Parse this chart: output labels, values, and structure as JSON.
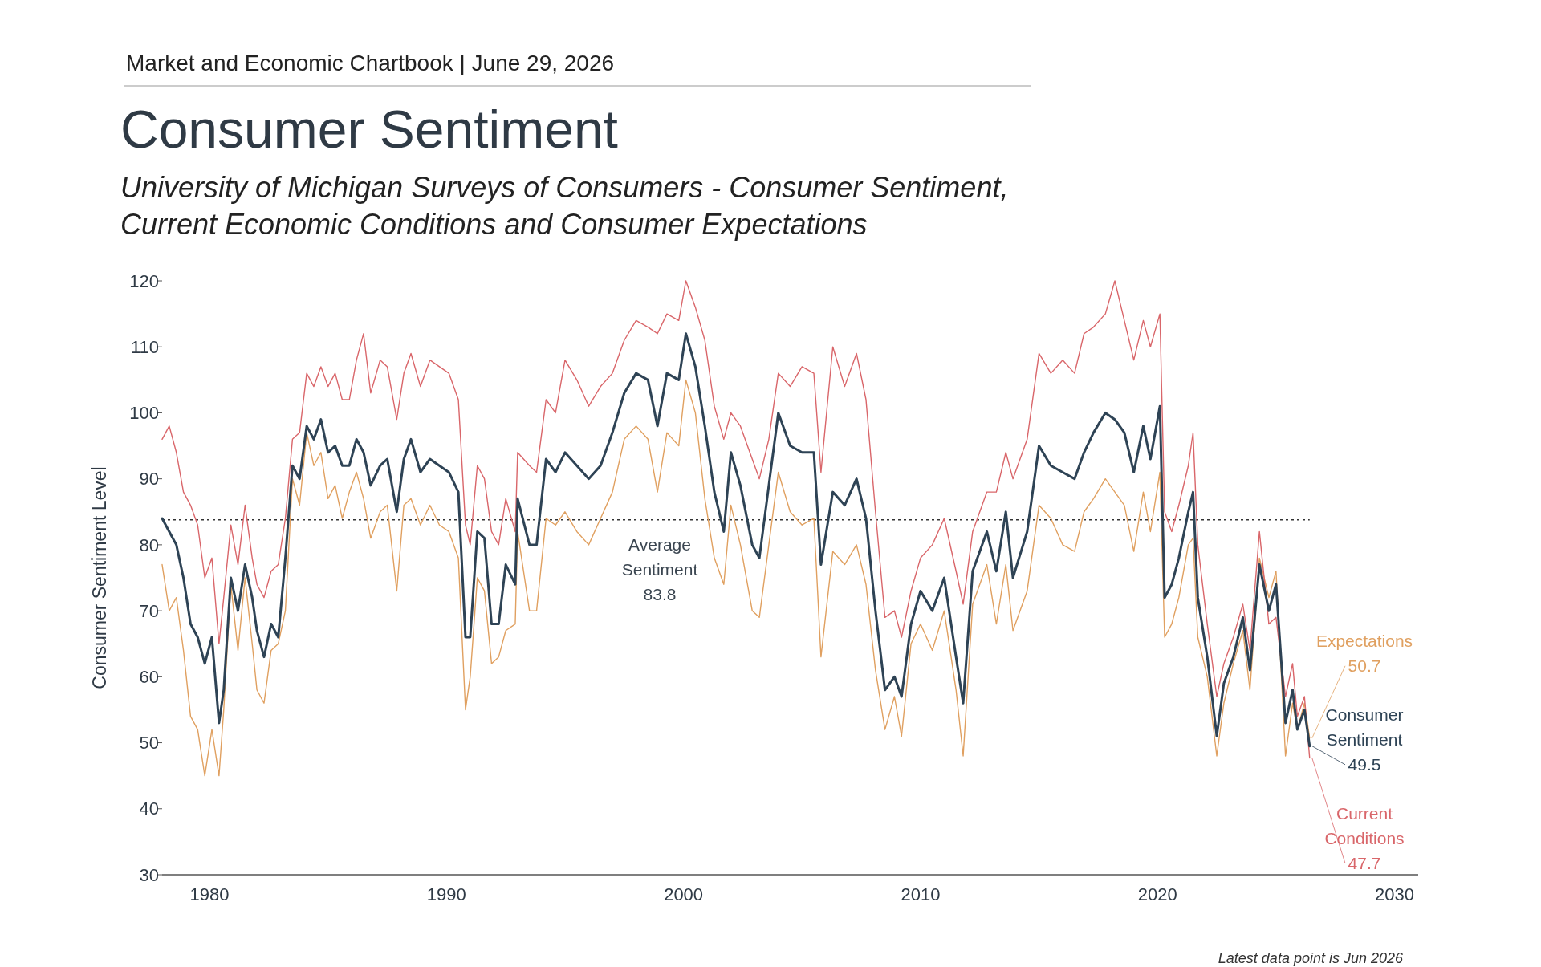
{
  "chart_data": {
    "type": "line",
    "title": "Consumer Sentiment",
    "subtitle": "University of Michigan Surveys of Consumers - Consumer Sentiment,\nCurrent Economic Conditions and Consumer Expectations",
    "ylabel": "Consumer Sentiment Level",
    "annotations": [
      "Market and Economic Chartbook | June 29, 2026",
      "Latest data point is Jun 2026"
    ],
    "x": [
      1978.0,
      1978.3,
      1978.6,
      1978.9,
      1979.2,
      1979.5,
      1979.8,
      1980.1,
      1980.4,
      1980.6,
      1980.9,
      1981.2,
      1981.5,
      1981.8,
      1982.0,
      1982.3,
      1982.6,
      1982.9,
      1983.2,
      1983.5,
      1983.8,
      1984.1,
      1984.4,
      1984.7,
      1985.0,
      1985.3,
      1985.6,
      1985.9,
      1986.2,
      1986.5,
      1986.8,
      1987.2,
      1987.5,
      1987.9,
      1988.2,
      1988.5,
      1988.9,
      1989.3,
      1989.7,
      1990.1,
      1990.5,
      1990.8,
      1991.0,
      1991.3,
      1991.6,
      1991.9,
      1992.2,
      1992.5,
      1992.9,
      1993.0,
      1993.5,
      1993.8,
      1994.2,
      1994.6,
      1995.0,
      1995.5,
      1996.0,
      1996.5,
      1997.0,
      1997.5,
      1998.0,
      1998.5,
      1998.9,
      1999.3,
      1999.8,
      2000.1,
      2000.5,
      2000.9,
      2001.3,
      2001.7,
      2002.0,
      2002.4,
      2002.9,
      2003.2,
      2003.6,
      2004.0,
      2004.5,
      2005.0,
      2005.5,
      2005.8,
      2006.3,
      2006.8,
      2007.3,
      2007.7,
      2008.1,
      2008.5,
      2008.9,
      2009.2,
      2009.6,
      2010.0,
      2010.5,
      2011.0,
      2011.5,
      2011.8,
      2012.2,
      2012.8,
      2013.2,
      2013.6,
      2013.9,
      2014.5,
      2015.0,
      2015.5,
      2016.0,
      2016.5,
      2016.9,
      2017.3,
      2017.8,
      2018.2,
      2018.6,
      2019.0,
      2019.4,
      2019.7,
      2020.1,
      2020.3,
      2020.6,
      2020.9,
      2021.3,
      2021.5,
      2021.7,
      2022.1,
      2022.5,
      2022.8,
      2023.2,
      2023.6,
      2023.9,
      2024.3,
      2024.7,
      2025.0,
      2025.4,
      2025.7,
      2025.9,
      2026.2,
      2026.42
    ],
    "series": [
      {
        "name": "Expectations",
        "color": "#e0a060",
        "values": [
          77,
          70,
          72,
          64,
          54,
          52,
          45,
          52,
          45,
          55,
          74,
          64,
          75,
          65,
          58,
          56,
          64,
          65,
          70,
          90,
          86,
          97,
          92,
          94,
          87,
          89,
          84,
          88,
          91,
          87,
          81,
          85,
          86,
          73,
          86,
          87,
          83,
          86,
          83,
          82,
          78,
          55,
          60,
          75,
          73,
          62,
          63,
          67,
          68,
          82,
          70,
          70,
          84,
          83,
          85,
          82,
          80,
          84,
          88,
          96,
          98,
          96,
          88,
          97,
          95,
          105,
          100,
          87,
          78,
          74,
          86,
          80,
          70,
          69,
          80,
          91,
          85,
          83,
          84,
          63,
          79,
          77,
          80,
          74,
          61,
          52,
          57,
          51,
          65,
          68,
          64,
          70,
          58,
          48,
          71,
          77,
          68,
          77,
          67,
          73,
          86,
          84,
          80,
          79,
          85,
          87,
          90,
          88,
          86,
          79,
          88,
          82,
          91,
          66,
          68,
          72,
          80,
          81,
          66,
          60,
          48,
          56,
          62,
          67,
          58,
          78,
          72,
          76,
          48,
          56,
          52,
          56,
          50.7
        ],
        "value_labels": [
          null,
          null,
          null,
          null,
          null,
          null,
          null,
          null,
          null,
          null,
          null,
          null,
          null,
          null,
          null,
          null,
          null,
          null,
          null,
          null,
          null,
          null,
          null,
          null,
          null,
          null,
          null,
          null,
          null,
          null,
          null,
          null,
          null,
          null,
          null,
          null,
          null,
          null,
          null,
          null,
          null,
          null,
          null,
          null,
          null,
          null,
          null,
          null,
          null,
          null,
          null,
          null,
          null,
          null,
          null,
          null,
          null,
          null,
          null,
          null,
          null,
          null,
          null,
          null,
          null,
          null,
          null,
          null,
          null,
          null,
          null,
          null,
          null,
          null,
          null,
          null,
          null,
          null,
          null,
          null,
          null,
          null,
          null,
          null,
          null,
          null,
          null,
          null,
          null,
          null,
          null,
          null,
          null,
          null,
          null,
          null,
          null,
          null,
          null,
          null,
          null,
          null,
          null,
          null,
          null,
          null,
          null,
          null,
          null,
          null,
          null,
          null,
          null,
          null,
          null,
          null,
          null,
          null,
          null,
          null,
          null,
          null,
          null,
          null,
          null,
          null,
          null,
          null,
          null,
          null,
          null,
          null,
          "50.7"
        ]
      },
      {
        "name": "Consumer Sentiment",
        "color": "#2e4355",
        "values": [
          84,
          82,
          80,
          75,
          68,
          66,
          62,
          66,
          53,
          58,
          75,
          70,
          77,
          72,
          67,
          63,
          68,
          66,
          78,
          92,
          90,
          98,
          96,
          99,
          94,
          95,
          92,
          92,
          96,
          94,
          89,
          92,
          93,
          85,
          93,
          96,
          91,
          93,
          92,
          91,
          88,
          66,
          66,
          82,
          81,
          68,
          68,
          77,
          74,
          87,
          80,
          80,
          93,
          91,
          94,
          92,
          90,
          92,
          97,
          103,
          106,
          105,
          98,
          106,
          105,
          112,
          107,
          98,
          88,
          82,
          94,
          89,
          80,
          78,
          89,
          100,
          95,
          94,
          94,
          77,
          88,
          86,
          90,
          84,
          70,
          58,
          60,
          57,
          68,
          73,
          70,
          75,
          63,
          56,
          76,
          82,
          76,
          85,
          75,
          82,
          95,
          92,
          91,
          90,
          94,
          97,
          100,
          99,
          97,
          91,
          98,
          93,
          101,
          72,
          74,
          78,
          85,
          88,
          72,
          63,
          51,
          59,
          63,
          69,
          61,
          77,
          70,
          74,
          53,
          58,
          52,
          55,
          49.5
        ],
        "value_labels": [
          null,
          null,
          null,
          null,
          null,
          null,
          null,
          null,
          null,
          null,
          null,
          null,
          null,
          null,
          null,
          null,
          null,
          null,
          null,
          null,
          null,
          null,
          null,
          null,
          null,
          null,
          null,
          null,
          null,
          null,
          null,
          null,
          null,
          null,
          null,
          null,
          null,
          null,
          null,
          null,
          null,
          null,
          null,
          null,
          null,
          null,
          null,
          null,
          null,
          null,
          null,
          null,
          null,
          null,
          null,
          null,
          null,
          null,
          null,
          null,
          null,
          null,
          null,
          null,
          null,
          null,
          null,
          null,
          null,
          null,
          null,
          null,
          null,
          null,
          null,
          null,
          null,
          null,
          null,
          null,
          null,
          null,
          null,
          null,
          null,
          null,
          null,
          null,
          null,
          null,
          null,
          null,
          null,
          null,
          null,
          null,
          null,
          null,
          null,
          null,
          null,
          null,
          null,
          null,
          null,
          null,
          null,
          null,
          null,
          null,
          null,
          null,
          null,
          null,
          null,
          null,
          null,
          null,
          null,
          null,
          null,
          null,
          null,
          null,
          null,
          null,
          null,
          null,
          null,
          null,
          null,
          null,
          "49.5"
        ]
      },
      {
        "name": "Current Conditions",
        "color": "#d9666a",
        "values": [
          96,
          98,
          94,
          88,
          86,
          83,
          75,
          78,
          65,
          72,
          83,
          77,
          86,
          78,
          74,
          72,
          76,
          77,
          84,
          96,
          97,
          106,
          104,
          107,
          104,
          106,
          102,
          102,
          108,
          112,
          103,
          108,
          107,
          99,
          106,
          109,
          104,
          108,
          107,
          106,
          102,
          83,
          80,
          92,
          90,
          82,
          80,
          87,
          82,
          94,
          92,
          91,
          102,
          100,
          108,
          105,
          101,
          104,
          106,
          111,
          114,
          113,
          112,
          115,
          114,
          120,
          116,
          111,
          101,
          96,
          100,
          98,
          93,
          90,
          96,
          106,
          104,
          107,
          106,
          91,
          110,
          104,
          109,
          102,
          85,
          69,
          70,
          66,
          73,
          78,
          80,
          84,
          76,
          71,
          82,
          88,
          88,
          94,
          90,
          96,
          109,
          106,
          108,
          106,
          112,
          113,
          115,
          120,
          114,
          108,
          114,
          110,
          115,
          85,
          82,
          86,
          92,
          97,
          80,
          68,
          57,
          62,
          66,
          71,
          64,
          82,
          68,
          69,
          57,
          62,
          54,
          57,
          47.7
        ],
        "value_labels": [
          null,
          null,
          null,
          null,
          null,
          null,
          null,
          null,
          null,
          null,
          null,
          null,
          null,
          null,
          null,
          null,
          null,
          null,
          null,
          null,
          null,
          null,
          null,
          null,
          null,
          null,
          null,
          null,
          null,
          null,
          null,
          null,
          null,
          null,
          null,
          null,
          null,
          null,
          null,
          null,
          null,
          null,
          null,
          null,
          null,
          null,
          null,
          null,
          null,
          null,
          null,
          null,
          null,
          null,
          null,
          null,
          null,
          null,
          null,
          null,
          null,
          null,
          null,
          null,
          null,
          null,
          null,
          null,
          null,
          null,
          null,
          null,
          null,
          null,
          null,
          null,
          null,
          null,
          null,
          null,
          null,
          null,
          null,
          null,
          null,
          null,
          null,
          null,
          null,
          null,
          null,
          null,
          null,
          null,
          null,
          null,
          null,
          null,
          null,
          null,
          null,
          null,
          null,
          null,
          null,
          null,
          null,
          null,
          null,
          null,
          null,
          null,
          null,
          null,
          null,
          null,
          null,
          null,
          null,
          null,
          null,
          null,
          null,
          null,
          null,
          null,
          null,
          null,
          null,
          null,
          null,
          null,
          "47.7"
        ]
      }
    ],
    "xlim": [
      1978,
      2031
    ],
    "xticks": [
      1980,
      1990,
      2000,
      2010,
      2020,
      2030
    ],
    "ylim": [
      30,
      120
    ],
    "yticks": [
      30,
      40,
      50,
      60,
      70,
      80,
      90,
      100,
      110,
      120
    ],
    "ref_lines": [
      {
        "axis": "y",
        "value": 83.8,
        "label": "Average Sentiment 83.8",
        "color": "#333333",
        "line_style": "dotted"
      }
    ],
    "grid": false,
    "legend": false
  }
}
